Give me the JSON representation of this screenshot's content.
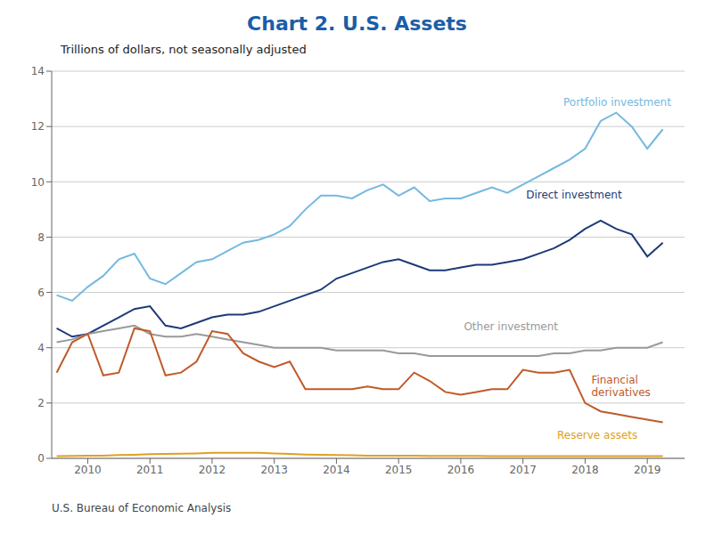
{
  "chart_data": {
    "type": "line",
    "title": "Chart 2. U.S. Assets",
    "subtitle": "Trillions of dollars, not seasonally adjusted",
    "footnote": "U.S. Bureau of Economic Analysis",
    "x": [
      2009.5,
      2009.75,
      2010.0,
      2010.25,
      2010.5,
      2010.75,
      2011.0,
      2011.25,
      2011.5,
      2011.75,
      2012.0,
      2012.25,
      2012.5,
      2012.75,
      2013.0,
      2013.25,
      2013.5,
      2013.75,
      2014.0,
      2014.25,
      2014.5,
      2014.75,
      2015.0,
      2015.25,
      2015.5,
      2015.75,
      2016.0,
      2016.25,
      2016.5,
      2016.75,
      2017.0,
      2017.25,
      2017.5,
      2017.75,
      2018.0,
      2018.25,
      2018.5,
      2018.75,
      2019.0,
      2019.25
    ],
    "series": [
      {
        "name": "Portfolio investment",
        "color": "#74B9E0",
        "values": [
          5.9,
          5.7,
          6.2,
          6.6,
          7.2,
          7.4,
          6.5,
          6.3,
          6.7,
          7.1,
          7.2,
          7.5,
          7.8,
          7.9,
          8.1,
          8.4,
          9.0,
          9.5,
          9.5,
          9.4,
          9.7,
          9.9,
          9.5,
          9.8,
          9.3,
          9.4,
          9.4,
          9.6,
          9.8,
          9.6,
          9.9,
          10.2,
          10.5,
          10.8,
          11.2,
          12.2,
          12.5,
          12.0,
          11.2,
          11.9
        ]
      },
      {
        "name": "Direct investment",
        "color": "#1C3A78",
        "values": [
          4.7,
          4.4,
          4.5,
          4.8,
          5.1,
          5.4,
          5.5,
          4.8,
          4.7,
          4.9,
          5.1,
          5.2,
          5.2,
          5.3,
          5.5,
          5.7,
          5.9,
          6.1,
          6.5,
          6.7,
          6.9,
          7.1,
          7.2,
          7.0,
          6.8,
          6.8,
          6.9,
          7.0,
          7.0,
          7.1,
          7.2,
          7.4,
          7.6,
          7.9,
          8.3,
          8.6,
          8.3,
          8.1,
          7.3,
          7.8
        ]
      },
      {
        "name": "Other investment",
        "color": "#999999",
        "values": [
          4.2,
          4.3,
          4.5,
          4.6,
          4.7,
          4.8,
          4.5,
          4.4,
          4.4,
          4.5,
          4.4,
          4.3,
          4.2,
          4.1,
          4.0,
          4.0,
          4.0,
          4.0,
          3.9,
          3.9,
          3.9,
          3.9,
          3.8,
          3.8,
          3.7,
          3.7,
          3.7,
          3.7,
          3.7,
          3.7,
          3.7,
          3.7,
          3.8,
          3.8,
          3.9,
          3.9,
          4.0,
          4.0,
          4.0,
          4.2
        ]
      },
      {
        "name": "Financial derivatives",
        "color": "#C05A2A",
        "values": [
          3.1,
          4.2,
          4.5,
          3.0,
          3.1,
          4.7,
          4.6,
          3.0,
          3.1,
          3.5,
          4.6,
          4.5,
          3.8,
          3.5,
          3.3,
          3.5,
          2.5,
          2.5,
          2.5,
          2.5,
          2.6,
          2.5,
          2.5,
          3.1,
          2.8,
          2.4,
          2.3,
          2.4,
          2.5,
          2.5,
          3.2,
          3.1,
          3.1,
          3.2,
          2.0,
          1.7,
          1.6,
          1.5,
          1.4,
          1.3
        ]
      },
      {
        "name": "Reserve assets",
        "color": "#E0A020",
        "values": [
          0.08,
          0.09,
          0.1,
          0.1,
          0.12,
          0.13,
          0.15,
          0.16,
          0.17,
          0.18,
          0.2,
          0.2,
          0.2,
          0.2,
          0.18,
          0.16,
          0.14,
          0.13,
          0.12,
          0.11,
          0.1,
          0.1,
          0.1,
          0.1,
          0.09,
          0.09,
          0.09,
          0.09,
          0.08,
          0.08,
          0.08,
          0.08,
          0.08,
          0.08,
          0.08,
          0.08,
          0.08,
          0.08,
          0.08,
          0.08
        ]
      }
    ],
    "annotations": [
      {
        "text": "Portfolio investment",
        "x": 2017.65,
        "y": 12.65,
        "color": "#74B9E0"
      },
      {
        "text": "Direct investment",
        "x": 2017.05,
        "y": 9.3,
        "color": "#1C3A78"
      },
      {
        "text": "Other investment",
        "x": 2016.05,
        "y": 4.55,
        "color": "#999999"
      },
      {
        "text": "Financial\nderivatives",
        "x": 2018.1,
        "y": 2.15,
        "color": "#C05A2A"
      },
      {
        "text": "Reserve assets",
        "x": 2017.55,
        "y": 0.6,
        "color": "#E0A020"
      }
    ],
    "xlim": [
      2009.42,
      2019.6
    ],
    "xticks": [
      2010,
      2011,
      2012,
      2013,
      2014,
      2015,
      2016,
      2017,
      2018,
      2019
    ],
    "ylim": [
      0,
      14
    ],
    "yticks": [
      0,
      2,
      4,
      6,
      8,
      10,
      12,
      14
    ],
    "grid": true
  }
}
